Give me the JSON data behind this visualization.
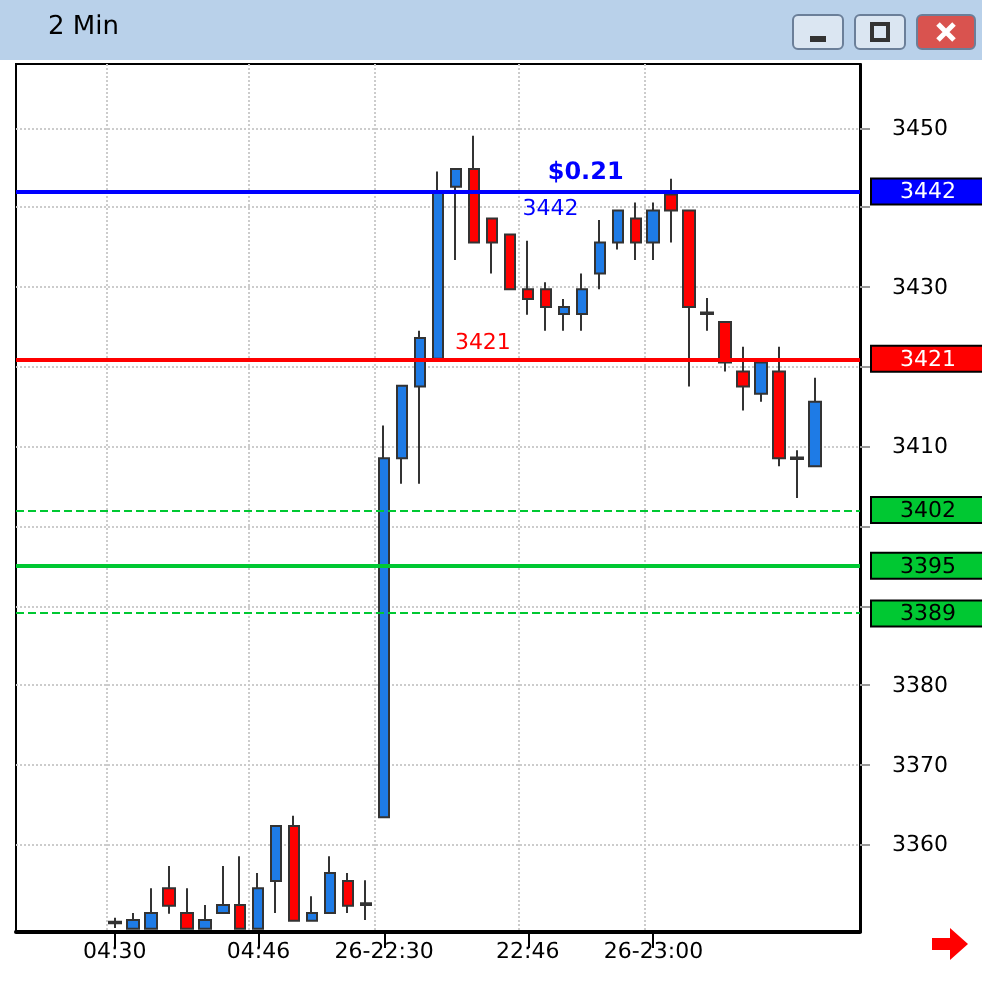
{
  "chart_data": {
    "type": "candlestick",
    "title": "2 Min",
    "categories": [
      null,
      null,
      null,
      null,
      null,
      "04:30",
      null,
      null,
      null,
      null,
      null,
      null,
      null,
      "04:46",
      null,
      null,
      null,
      null,
      null,
      null,
      "26-22:30",
      null,
      null,
      null,
      null,
      null,
      null,
      null,
      "22:46",
      null,
      null,
      null,
      null,
      null,
      null,
      "26-23:00",
      null,
      null,
      null,
      null,
      null,
      null,
      null,
      null,
      null,
      null,
      null
    ],
    "ohlc": [
      null,
      null,
      null,
      null,
      null,
      [
        3350.1,
        3350.8,
        3349.5,
        3350.3
      ],
      [
        3349.4,
        3351.4,
        3349.3,
        3350.5
      ],
      [
        3349.4,
        3354.5,
        3349.3,
        3351.4
      ],
      [
        3354.5,
        3357.3,
        3351.3,
        3352.3
      ],
      [
        3351.4,
        3354.5,
        3349.3,
        3349.4
      ],
      [
        3349.4,
        3352.4,
        3349.3,
        3350.5
      ],
      [
        3351.4,
        3357.3,
        3351.3,
        3352.4
      ],
      [
        3352.4,
        3358.5,
        3349.3,
        3349.4
      ],
      [
        3349.4,
        3356.4,
        3349.3,
        3354.5
      ],
      [
        3355.4,
        3362.3,
        3351.4,
        3362.3
      ],
      [
        3362.3,
        3363.6,
        3350.4,
        3350.4
      ],
      [
        3350.4,
        3353.5,
        3350.4,
        3351.4
      ],
      [
        3351.4,
        3358.5,
        3351.4,
        3356.4
      ],
      [
        3355.4,
        3356.4,
        3351.4,
        3352.3
      ],
      [
        3352.4,
        3355.5,
        3350.5,
        3352.6
      ],
      [
        3363.4,
        3412.6,
        3363.4,
        3408.5
      ],
      [
        3408.5,
        3417.6,
        3405.3,
        3417.6
      ],
      [
        3417.5,
        3424.5,
        3405.3,
        3423.6
      ],
      [
        3421,
        3444.5,
        3421,
        3442
      ],
      [
        3442.6,
        3444.8,
        3433.4,
        3444.8
      ],
      [
        3444.8,
        3449,
        3435.6,
        3435.6
      ],
      [
        3438.6,
        3438.6,
        3431.7,
        3435.6
      ],
      [
        3436.6,
        3436.6,
        3429.7,
        3429.7
      ],
      [
        3429.7,
        3435.8,
        3426.5,
        3428.5
      ],
      [
        3429.7,
        3430.6,
        3424.5,
        3427.5
      ],
      [
        3426.6,
        3428.5,
        3424.5,
        3427.5
      ],
      [
        3426.6,
        3431.7,
        3424.5,
        3429.7
      ],
      [
        3431.7,
        3438.4,
        3429.7,
        3435.6
      ],
      [
        3435.6,
        3439.6,
        3434.7,
        3439.6
      ],
      [
        3438.6,
        3440.6,
        3433.4,
        3435.6
      ],
      [
        3435.6,
        3440.6,
        3433.4,
        3439.6
      ],
      [
        3441.6,
        3443.6,
        3435.6,
        3439.6
      ],
      [
        3439.6,
        3439.6,
        3417.5,
        3427.5
      ],
      [
        3426.6,
        3428.6,
        3424.5,
        3426.8
      ],
      [
        3425.6,
        3425.6,
        3419.4,
        3420.5
      ],
      [
        3419.4,
        3422.5,
        3414.5,
        3417.5
      ],
      [
        3416.6,
        3420.5,
        3415.6,
        3420.5
      ],
      [
        3419.4,
        3422.5,
        3407.5,
        3408.5
      ],
      [
        3408.4,
        3409.5,
        3403.5,
        3408.6
      ],
      [
        3407.5,
        3418.6,
        3407.5,
        3415.6
      ],
      null,
      null
    ],
    "colors": [
      null,
      null,
      null,
      null,
      null,
      "#1e7be6",
      "#1e7be6",
      "#1e7be6",
      "#ff0000",
      "#ff0000",
      "#1e7be6",
      "#1e7be6",
      "#ff0000",
      "#1e7be6",
      "#1e7be6",
      "#ff0000",
      "#1e7be6",
      "#1e7be6",
      "#ff0000",
      "#1e7be6",
      "#1e7be6",
      "#1e7be6",
      "#1e7be6",
      "#1e7be6",
      "#1e7be6",
      "#ff0000",
      "#ff0000",
      "#ff0000",
      "#ff0000",
      "#ff0000",
      "#1e7be6",
      "#1e7be6",
      "#1e7be6",
      "#1e7be6",
      "#ff0000",
      "#1e7be6",
      "#ff0000",
      "#ff0000",
      "#1e7be6",
      "#ff0000",
      "#ff0000",
      "#1e7be6",
      "#ff0000",
      "#1e7be6",
      "#1e7be6",
      null,
      null
    ],
    "ylim": [
      3349,
      3458
    ],
    "yticks": [
      3360,
      3370,
      3380,
      {
        "value": 3390,
        "label": null
      },
      {
        "value": 3400,
        "label": null
      },
      3410,
      {
        "value": 3420,
        "label": null
      },
      3430,
      {
        "value": 3440,
        "label": null
      },
      3450
    ],
    "grid": true,
    "ref_lines": [
      {
        "axis": "y",
        "value": 3442,
        "label": "3442",
        "color": "#0000ff",
        "line_style": "solid"
      },
      {
        "axis": "y",
        "value": 3421,
        "label": "3421",
        "color": "#ff0000",
        "line_style": "solid"
      },
      {
        "axis": "y",
        "value": 3402,
        "label": "3402",
        "color": "#00c832",
        "line_style": "dashed"
      },
      {
        "axis": "y",
        "value": 3395,
        "label": "3395",
        "color": "#00c832",
        "line_style": "solid"
      },
      {
        "axis": "y",
        "value": 3389,
        "label": "3389",
        "color": "#00c832",
        "line_style": "dashed"
      }
    ],
    "annotations": [
      {
        "text": "$0.21",
        "y": 3442
      },
      {
        "text": "3442",
        "y": 3442
      },
      {
        "text": "3421",
        "y": 3421
      }
    ]
  }
}
